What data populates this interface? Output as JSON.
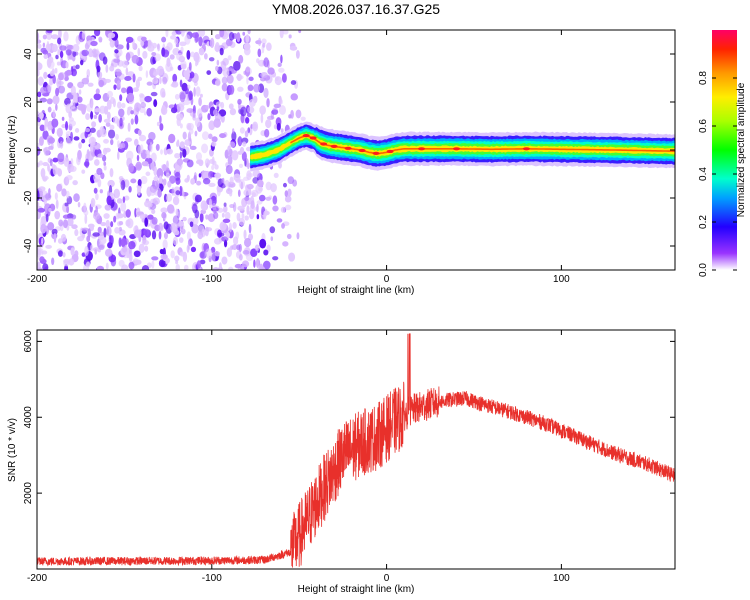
{
  "chart_data": [
    {
      "type": "heatmap",
      "title": "YM08.2026.037.16.37.G25",
      "xlabel": "Height of straight line (km)",
      "ylabel": "Frequency (Hz)",
      "xlim": [
        -200,
        165
      ],
      "ylim": [
        -50,
        50
      ],
      "xticks": [
        "-200",
        "-100",
        "0",
        "100"
      ],
      "xtick_values": [
        -200,
        -100,
        0,
        100
      ],
      "yticks": [
        "40",
        "20",
        "0",
        "-20",
        "-40"
      ],
      "ytick_values": [
        40,
        20,
        0,
        -20,
        -40
      ],
      "noise_region_x": [
        -200,
        -46
      ],
      "ridge": {
        "x": [
          -78,
          -70,
          -62,
          -55,
          -50,
          -46,
          -42,
          -38,
          -34,
          -30,
          -25,
          -20,
          -15,
          -10,
          -5,
          0,
          5,
          10,
          20,
          40,
          60,
          80,
          100,
          130,
          165
        ],
        "freq": [
          -3,
          -2,
          0,
          3,
          5,
          6,
          5,
          3,
          2,
          1.5,
          1,
          0.5,
          0,
          -1,
          -1.5,
          -1,
          0,
          0.5,
          0.5,
          0.5,
          0.3,
          0.5,
          0.3,
          0,
          -0.5
        ]
      },
      "colorbar": {
        "label": "Normalized spectral amplitude",
        "range": [
          0,
          1
        ],
        "ticks": [
          "0.0",
          "0.2",
          "0.4",
          "0.6",
          "0.8"
        ],
        "tick_values": [
          0,
          0.2,
          0.4,
          0.6,
          0.8
        ]
      }
    },
    {
      "type": "line",
      "title": "",
      "xlabel": "Height of straight line (km)",
      "ylabel": "SNR (10 * v/v)",
      "xlim": [
        -200,
        165
      ],
      "ylim": [
        0,
        6300
      ],
      "xticks": [
        "-200",
        "-100",
        "0",
        "100"
      ],
      "xtick_values": [
        -200,
        -100,
        0,
        100
      ],
      "yticks": [
        "6000",
        "4000",
        "2000"
      ],
      "ytick_values": [
        6000,
        4000,
        2000
      ],
      "series": [
        {
          "name": "SNR",
          "color": "#e8302b",
          "x": [
            -200,
            -150,
            -100,
            -70,
            -55,
            -45,
            -35,
            -25,
            -15,
            -5,
            5,
            15,
            25,
            35,
            45,
            55,
            70,
            90,
            110,
            130,
            150,
            165
          ],
          "y": [
            200,
            210,
            220,
            240,
            450,
            1300,
            2200,
            3000,
            3300,
            3500,
            3900,
            4200,
            4350,
            4450,
            4500,
            4350,
            4150,
            3850,
            3450,
            3050,
            2750,
            2450
          ]
        }
      ]
    }
  ]
}
